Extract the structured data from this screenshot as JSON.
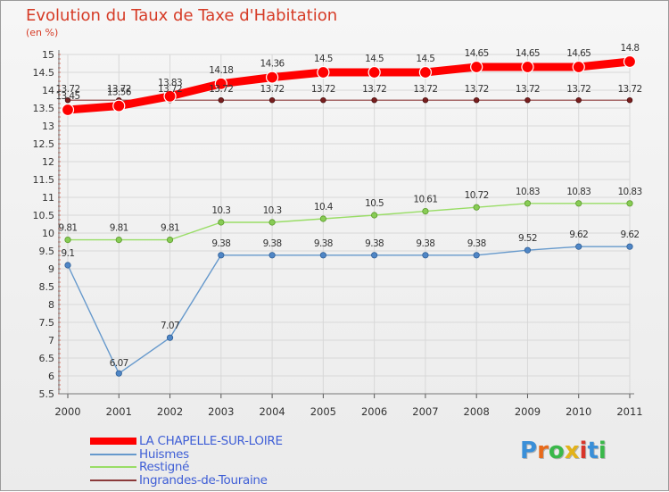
{
  "chart_data": {
    "type": "line",
    "title": "Evolution du Taux de Taxe d'Habitation",
    "ylabel": "(en %)",
    "categories": [
      "2000",
      "2001",
      "2002",
      "2003",
      "2004",
      "2005",
      "2006",
      "2007",
      "2008",
      "2009",
      "2010",
      "2011"
    ],
    "y_ticks": [
      "5.5",
      "6",
      "6.5",
      "7",
      "7.5",
      "8",
      "8.5",
      "9",
      "9.5",
      "10",
      "10.5",
      "11",
      "11.5",
      "12",
      "12.5",
      "13",
      "13.5",
      "14",
      "14.5",
      "15"
    ],
    "ylim": [
      5.5,
      15
    ],
    "grid": true,
    "series": [
      {
        "name": "LA CHAPELLE-SUR-LOIRE",
        "color": "#ff0000",
        "labels": [
          "13.45",
          "13.56",
          "13.83",
          "14.18",
          "14.36",
          "14.5",
          "14.5",
          "14.5",
          "14.65",
          "14.65",
          "14.65",
          "14.8"
        ],
        "values": [
          13.45,
          13.56,
          13.83,
          14.18,
          14.36,
          14.5,
          14.5,
          14.5,
          14.65,
          14.65,
          14.65,
          14.8
        ]
      },
      {
        "name": "Huismes",
        "color": "#6699cc",
        "labels": [
          "9.1",
          "6.07",
          "7.07",
          "9.38",
          "9.38",
          "9.38",
          "9.38",
          "9.38",
          "9.38",
          "9.52",
          "9.62",
          "9.62"
        ],
        "values": [
          9.1,
          6.07,
          7.07,
          9.38,
          9.38,
          9.38,
          9.38,
          9.38,
          9.38,
          9.52,
          9.62,
          9.62
        ]
      },
      {
        "name": "Restigné",
        "color": "#99dd66",
        "labels": [
          "9.81",
          "9.81",
          "9.81",
          "10.3",
          "10.3",
          "10.4",
          "10.5",
          "10.61",
          "10.72",
          "10.83",
          "10.83",
          "10.83"
        ],
        "values": [
          9.81,
          9.81,
          9.81,
          10.3,
          10.3,
          10.4,
          10.5,
          10.61,
          10.72,
          10.83,
          10.83,
          10.83
        ]
      },
      {
        "name": "Ingrandes-de-Touraine",
        "color": "#8b3a3a",
        "labels": [
          "13.72",
          "13.72",
          "13.72",
          "13.72",
          "13.72",
          "13.72",
          "13.72",
          "13.72",
          "13.72",
          "13.72",
          "13.72",
          "13.72"
        ],
        "values": [
          13.72,
          13.72,
          13.72,
          13.72,
          13.72,
          13.72,
          13.72,
          13.72,
          13.72,
          13.72,
          13.72,
          13.72
        ]
      }
    ]
  },
  "logo": {
    "letters": [
      "P",
      "r",
      "o",
      "x",
      "i",
      "t",
      "i"
    ],
    "colors": [
      "#3a8fd8",
      "#e86a1a",
      "#3ab84a",
      "#e2b21a",
      "#d8352a",
      "#3a8fd8",
      "#3ab84a"
    ]
  }
}
